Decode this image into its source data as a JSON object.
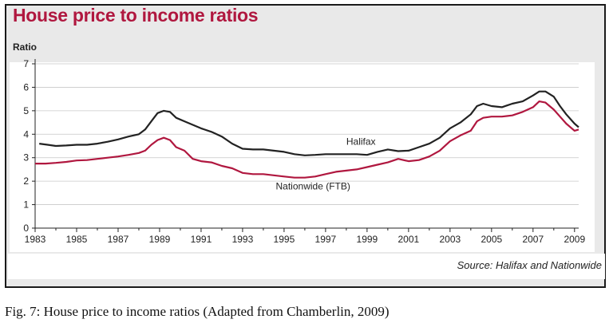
{
  "chart_data": {
    "type": "line",
    "title": "House price to income ratios",
    "ylabel": "Ratio",
    "xlabel": "",
    "xlim": [
      1983,
      2009.2
    ],
    "ylim": [
      0,
      7
    ],
    "x_ticks": [
      "1983",
      "1985",
      "1987",
      "1989",
      "1991",
      "1993",
      "1995",
      "1997",
      "1999",
      "2001",
      "2003",
      "2005",
      "2007",
      "2009"
    ],
    "y_ticks": [
      "0",
      "1",
      "2",
      "3",
      "4",
      "5",
      "6",
      "7"
    ],
    "grid": true,
    "source": "Source: Halifax and Nationwide",
    "series": [
      {
        "name": "Halifax",
        "color": "#222222",
        "x": [
          1983.2,
          1983.6,
          1984.0,
          1984.5,
          1985.0,
          1985.5,
          1986.0,
          1986.5,
          1987.0,
          1987.5,
          1988.0,
          1988.3,
          1988.6,
          1988.9,
          1989.2,
          1989.5,
          1989.8,
          1990.2,
          1990.6,
          1991.0,
          1991.5,
          1992.0,
          1992.5,
          1993.0,
          1993.5,
          1994.0,
          1994.5,
          1995.0,
          1995.5,
          1996.0,
          1996.5,
          1997.0,
          1997.5,
          1998.0,
          1998.5,
          1999.0,
          1999.5,
          2000.0,
          2000.5,
          2001.0,
          2001.5,
          2002.0,
          2002.5,
          2003.0,
          2003.5,
          2004.0,
          2004.3,
          2004.6,
          2005.0,
          2005.5,
          2006.0,
          2006.5,
          2007.0,
          2007.3,
          2007.6,
          2008.0,
          2008.3,
          2008.6,
          2009.0,
          2009.2
        ],
        "values": [
          3.6,
          3.55,
          3.5,
          3.52,
          3.55,
          3.55,
          3.6,
          3.68,
          3.78,
          3.9,
          4.0,
          4.2,
          4.55,
          4.9,
          5.0,
          4.95,
          4.7,
          4.55,
          4.4,
          4.25,
          4.1,
          3.9,
          3.6,
          3.38,
          3.35,
          3.35,
          3.3,
          3.25,
          3.15,
          3.1,
          3.12,
          3.15,
          3.15,
          3.15,
          3.15,
          3.12,
          3.25,
          3.35,
          3.28,
          3.3,
          3.45,
          3.6,
          3.85,
          4.25,
          4.5,
          4.85,
          5.2,
          5.3,
          5.2,
          5.15,
          5.3,
          5.4,
          5.65,
          5.82,
          5.82,
          5.6,
          5.2,
          4.85,
          4.45,
          4.3
        ]
      },
      {
        "name": "Nationwide (FTB)",
        "color": "#b0173f",
        "x": [
          1983.0,
          1983.5,
          1984.0,
          1984.5,
          1985.0,
          1985.5,
          1986.0,
          1986.5,
          1987.0,
          1987.5,
          1988.0,
          1988.3,
          1988.6,
          1988.9,
          1989.2,
          1989.5,
          1989.8,
          1990.2,
          1990.6,
          1991.0,
          1991.5,
          1992.0,
          1992.5,
          1993.0,
          1993.5,
          1994.0,
          1994.5,
          1995.0,
          1995.5,
          1996.0,
          1996.5,
          1997.0,
          1997.5,
          1998.0,
          1998.5,
          1999.0,
          1999.5,
          2000.0,
          2000.5,
          2001.0,
          2001.5,
          2002.0,
          2002.5,
          2003.0,
          2003.5,
          2004.0,
          2004.3,
          2004.6,
          2005.0,
          2005.5,
          2006.0,
          2006.5,
          2007.0,
          2007.3,
          2007.6,
          2008.0,
          2008.3,
          2008.6,
          2009.0,
          2009.2
        ],
        "values": [
          2.75,
          2.75,
          2.78,
          2.82,
          2.88,
          2.9,
          2.95,
          3.0,
          3.05,
          3.12,
          3.2,
          3.3,
          3.55,
          3.75,
          3.85,
          3.75,
          3.45,
          3.3,
          2.95,
          2.85,
          2.8,
          2.65,
          2.55,
          2.35,
          2.3,
          2.3,
          2.25,
          2.2,
          2.15,
          2.15,
          2.2,
          2.3,
          2.4,
          2.45,
          2.5,
          2.6,
          2.7,
          2.8,
          2.95,
          2.85,
          2.9,
          3.05,
          3.3,
          3.7,
          3.95,
          4.15,
          4.55,
          4.7,
          4.75,
          4.75,
          4.8,
          4.95,
          5.15,
          5.4,
          5.35,
          5.05,
          4.75,
          4.45,
          4.15,
          4.2
        ]
      }
    ],
    "annotations": [
      {
        "text": "Halifax",
        "x": 1998.0,
        "y": 3.55
      },
      {
        "text": "Nationwide (FTB)",
        "x": 1994.6,
        "y": 1.65
      }
    ]
  },
  "caption": "Fig. 7: House price to income ratios (Adapted from Chamberlin, 2009)"
}
